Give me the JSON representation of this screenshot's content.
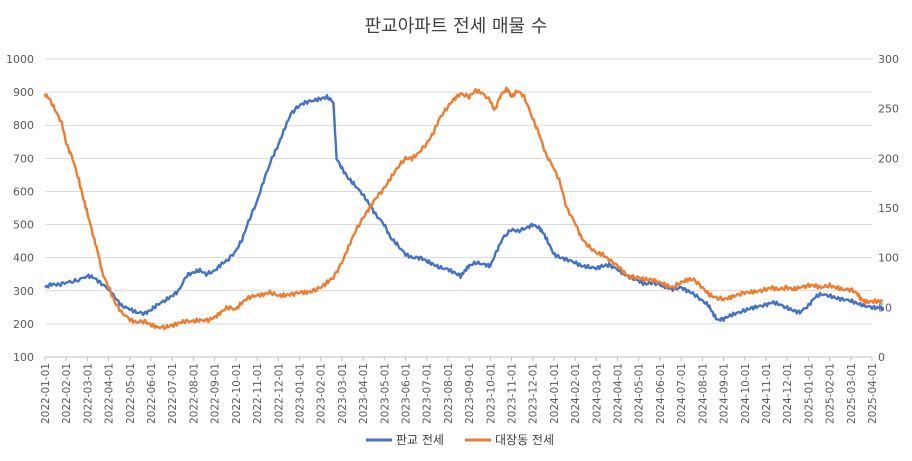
{
  "chart_data": {
    "type": "line",
    "title": "판교아파트 전세 매물 수",
    "y_left": {
      "min": 100,
      "max": 1000,
      "ticks": [
        100,
        200,
        300,
        400,
        500,
        600,
        700,
        800,
        900,
        1000
      ]
    },
    "y_right": {
      "min": 0,
      "max": 300,
      "ticks": [
        0,
        50,
        100,
        150,
        200,
        250,
        300
      ]
    },
    "x_labels": [
      "2022-01-01",
      "2022-02-01",
      "2022-03-01",
      "2022-04-01",
      "2022-05-01",
      "2022-06-01",
      "2022-07-01",
      "2022-08-01",
      "2022-09-01",
      "2022-10-01",
      "2022-11-01",
      "2022-12-01",
      "2023-01-01",
      "2023-02-01",
      "2023-03-01",
      "2023-04-01",
      "2023-05-01",
      "2023-06-01",
      "2023-07-01",
      "2023-08-01",
      "2023-09-01",
      "2023-10-01",
      "2023-11-01",
      "2023-12-01",
      "2024-01-01",
      "2024-02-01",
      "2024-03-01",
      "2024-04-01",
      "2024-05-01",
      "2024-06-01",
      "2024-07-01",
      "2024-08-01",
      "2024-09-01",
      "2024-10-01",
      "2024-11-01",
      "2024-12-01",
      "2025-01-01",
      "2025-02-01",
      "2025-03-01",
      "2025-04-01"
    ],
    "series": [
      {
        "name": "판교 전세",
        "axis": "left",
        "color": "#4472c4",
        "points": [
          [
            0,
            310
          ],
          [
            0.3,
            320
          ],
          [
            0.6,
            318
          ],
          [
            1,
            325
          ],
          [
            1.5,
            330
          ],
          [
            2,
            345
          ],
          [
            2.3,
            340
          ],
          [
            2.6,
            325
          ],
          [
            3,
            305
          ],
          [
            3.3,
            280
          ],
          [
            3.6,
            255
          ],
          [
            4,
            245
          ],
          [
            4.3,
            235
          ],
          [
            4.7,
            232
          ],
          [
            5,
            242
          ],
          [
            5.3,
            258
          ],
          [
            5.7,
            272
          ],
          [
            6,
            285
          ],
          [
            6.3,
            300
          ],
          [
            6.7,
            348
          ],
          [
            7,
            355
          ],
          [
            7.3,
            362
          ],
          [
            7.6,
            350
          ],
          [
            8,
            360
          ],
          [
            8.3,
            380
          ],
          [
            8.6,
            392
          ],
          [
            9,
            420
          ],
          [
            9.3,
            455
          ],
          [
            9.6,
            510
          ],
          [
            10,
            570
          ],
          [
            10.3,
            630
          ],
          [
            10.7,
            700
          ],
          [
            11,
            740
          ],
          [
            11.3,
            790
          ],
          [
            11.6,
            835
          ],
          [
            12,
            860
          ],
          [
            12.3,
            870
          ],
          [
            12.7,
            875
          ],
          [
            13,
            880
          ],
          [
            13.3,
            885
          ],
          [
            13.6,
            870
          ],
          [
            13.75,
            700
          ],
          [
            14,
            670
          ],
          [
            14.3,
            640
          ],
          [
            14.6,
            620
          ],
          [
            15,
            590
          ],
          [
            15.3,
            560
          ],
          [
            15.6,
            530
          ],
          [
            16,
            500
          ],
          [
            16.3,
            460
          ],
          [
            16.6,
            440
          ],
          [
            17,
            410
          ],
          [
            17.3,
            400
          ],
          [
            17.7,
            400
          ],
          [
            18,
            390
          ],
          [
            18.3,
            380
          ],
          [
            18.6,
            370
          ],
          [
            19,
            365
          ],
          [
            19.3,
            355
          ],
          [
            19.6,
            345
          ],
          [
            19.8,
            360
          ],
          [
            20,
            375
          ],
          [
            20.3,
            385
          ],
          [
            20.7,
            380
          ],
          [
            21,
            375
          ],
          [
            21.3,
            420
          ],
          [
            21.6,
            460
          ],
          [
            22,
            485
          ],
          [
            22.3,
            480
          ],
          [
            22.7,
            490
          ],
          [
            23,
            500
          ],
          [
            23.3,
            490
          ],
          [
            23.5,
            475
          ],
          [
            23.7,
            450
          ],
          [
            24,
            410
          ],
          [
            24.3,
            400
          ],
          [
            24.6,
            395
          ],
          [
            25,
            385
          ],
          [
            25.3,
            375
          ],
          [
            25.6,
            372
          ],
          [
            26,
            368
          ],
          [
            26.3,
            375
          ],
          [
            26.6,
            378
          ],
          [
            27,
            365
          ],
          [
            27.3,
            350
          ],
          [
            27.6,
            340
          ],
          [
            28,
            330
          ],
          [
            28.3,
            320
          ],
          [
            28.6,
            325
          ],
          [
            29,
            318
          ],
          [
            29.3,
            310
          ],
          [
            29.6,
            305
          ],
          [
            30,
            310
          ],
          [
            30.3,
            300
          ],
          [
            30.6,
            290
          ],
          [
            31,
            270
          ],
          [
            31.3,
            255
          ],
          [
            31.5,
            232
          ],
          [
            31.7,
            212
          ],
          [
            32,
            215
          ],
          [
            32.3,
            225
          ],
          [
            32.6,
            232
          ],
          [
            33,
            240
          ],
          [
            33.3,
            248
          ],
          [
            33.6,
            252
          ],
          [
            34,
            258
          ],
          [
            34.3,
            265
          ],
          [
            34.6,
            260
          ],
          [
            35,
            248
          ],
          [
            35.3,
            240
          ],
          [
            35.6,
            235
          ],
          [
            36,
            255
          ],
          [
            36.3,
            280
          ],
          [
            36.6,
            290
          ],
          [
            37,
            285
          ],
          [
            37.3,
            278
          ],
          [
            37.6,
            275
          ],
          [
            38,
            270
          ],
          [
            38.3,
            262
          ],
          [
            38.6,
            255
          ],
          [
            39,
            250
          ],
          [
            39.3,
            248
          ],
          [
            39.5,
            250
          ]
        ]
      },
      {
        "name": "대장동 전세",
        "axis": "right",
        "color": "#ed7d31",
        "points": [
          [
            0,
            265
          ],
          [
            0.2,
            260
          ],
          [
            0.5,
            248
          ],
          [
            0.8,
            235
          ],
          [
            1,
            215
          ],
          [
            1.3,
            200
          ],
          [
            1.6,
            178
          ],
          [
            1.8,
            160
          ],
          [
            2,
            145
          ],
          [
            2.3,
            120
          ],
          [
            2.5,
            105
          ],
          [
            2.7,
            85
          ],
          [
            3,
            70
          ],
          [
            3.3,
            55
          ],
          [
            3.6,
            45
          ],
          [
            4,
            38
          ],
          [
            4.3,
            35
          ],
          [
            4.7,
            36
          ],
          [
            5,
            32
          ],
          [
            5.3,
            30
          ],
          [
            5.7,
            30
          ],
          [
            6,
            32
          ],
          [
            6.3,
            34
          ],
          [
            6.6,
            36
          ],
          [
            7,
            36
          ],
          [
            7.3,
            37
          ],
          [
            7.7,
            37
          ],
          [
            8,
            40
          ],
          [
            8.3,
            45
          ],
          [
            8.6,
            50
          ],
          [
            9,
            48
          ],
          [
            9.3,
            55
          ],
          [
            9.6,
            60
          ],
          [
            10,
            62
          ],
          [
            10.3,
            63
          ],
          [
            10.6,
            65
          ],
          [
            11,
            62
          ],
          [
            11.3,
            62
          ],
          [
            11.6,
            63
          ],
          [
            12,
            65
          ],
          [
            12.3,
            65
          ],
          [
            12.6,
            66
          ],
          [
            13,
            70
          ],
          [
            13.3,
            75
          ],
          [
            13.6,
            80
          ],
          [
            14,
            95
          ],
          [
            14.3,
            110
          ],
          [
            14.6,
            125
          ],
          [
            15,
            140
          ],
          [
            15.3,
            150
          ],
          [
            15.6,
            160
          ],
          [
            16,
            170
          ],
          [
            16.3,
            180
          ],
          [
            16.6,
            190
          ],
          [
            17,
            200
          ],
          [
            17.3,
            200
          ],
          [
            17.6,
            205
          ],
          [
            18,
            215
          ],
          [
            18.3,
            225
          ],
          [
            18.6,
            240
          ],
          [
            19,
            252
          ],
          [
            19.3,
            260
          ],
          [
            19.6,
            265
          ],
          [
            20,
            262
          ],
          [
            20.3,
            268
          ],
          [
            20.6,
            266
          ],
          [
            21,
            258
          ],
          [
            21.2,
            248
          ],
          [
            21.5,
            264
          ],
          [
            21.8,
            270
          ],
          [
            22,
            262
          ],
          [
            22.3,
            268
          ],
          [
            22.6,
            262
          ],
          [
            23,
            240
          ],
          [
            23.3,
            225
          ],
          [
            23.6,
            205
          ],
          [
            24,
            190
          ],
          [
            24.3,
            175
          ],
          [
            24.6,
            150
          ],
          [
            25,
            135
          ],
          [
            25.3,
            120
          ],
          [
            25.6,
            112
          ],
          [
            26,
            105
          ],
          [
            26.3,
            103
          ],
          [
            26.6,
            98
          ],
          [
            27,
            92
          ],
          [
            27.3,
            85
          ],
          [
            27.6,
            80
          ],
          [
            28,
            80
          ],
          [
            28.3,
            78
          ],
          [
            28.6,
            78
          ],
          [
            29,
            75
          ],
          [
            29.3,
            72
          ],
          [
            29.6,
            70
          ],
          [
            30,
            75
          ],
          [
            30.3,
            78
          ],
          [
            30.6,
            78
          ],
          [
            31,
            70
          ],
          [
            31.3,
            63
          ],
          [
            31.6,
            60
          ],
          [
            32,
            58
          ],
          [
            32.3,
            60
          ],
          [
            32.6,
            62
          ],
          [
            33,
            65
          ],
          [
            33.3,
            65
          ],
          [
            33.6,
            66
          ],
          [
            34,
            68
          ],
          [
            34.3,
            70
          ],
          [
            34.6,
            68
          ],
          [
            35,
            70
          ],
          [
            35.3,
            68
          ],
          [
            35.6,
            70
          ],
          [
            36,
            72
          ],
          [
            36.3,
            72
          ],
          [
            36.6,
            70
          ],
          [
            37,
            72
          ],
          [
            37.3,
            70
          ],
          [
            37.6,
            68
          ],
          [
            38,
            68
          ],
          [
            38.3,
            64
          ],
          [
            38.5,
            58
          ],
          [
            38.7,
            55
          ],
          [
            39,
            56
          ],
          [
            39.3,
            56
          ],
          [
            39.5,
            56
          ]
        ]
      }
    ],
    "legend_position": "bottom-center"
  }
}
